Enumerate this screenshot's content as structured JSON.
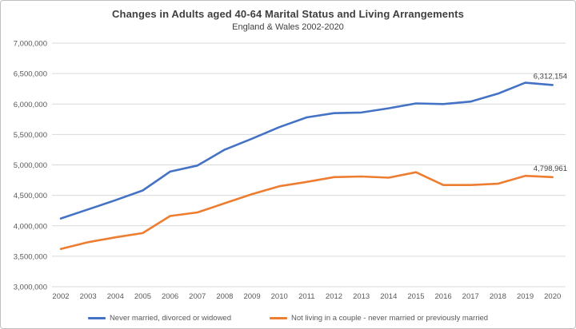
{
  "chart_data": {
    "type": "line",
    "title": "Changes in Adults aged 40-64 Marital Status and Living Arrangements",
    "subtitle": "England & Wales 2002-2020",
    "x": [
      2002,
      2003,
      2004,
      2005,
      2006,
      2007,
      2008,
      2009,
      2010,
      2011,
      2012,
      2013,
      2014,
      2015,
      2016,
      2017,
      2018,
      2019,
      2020
    ],
    "series": [
      {
        "name": "Never married, divorced or widowed",
        "color": "#4472C4",
        "values": [
          4120000,
          4270000,
          4420000,
          4580000,
          4890000,
          4990000,
          5250000,
          5430000,
          5620000,
          5780000,
          5850000,
          5860000,
          5930000,
          6010000,
          6000000,
          6040000,
          6170000,
          6350000,
          6312154
        ],
        "end_label": "6,312,154"
      },
      {
        "name": "Not living in a couple - never married or previously married",
        "color": "#ED7D31",
        "values": [
          3620000,
          3730000,
          3810000,
          3880000,
          4160000,
          4220000,
          4370000,
          4520000,
          4650000,
          4720000,
          4800000,
          4810000,
          4790000,
          4880000,
          4670000,
          4670000,
          4690000,
          4820000,
          4798961
        ],
        "end_label": "4,798,961"
      }
    ],
    "ylim": [
      3000000,
      7000000
    ],
    "ytick_step": 500000,
    "ytick_labels": [
      "3,000,000",
      "3,500,000",
      "4,000,000",
      "4,500,000",
      "5,000,000",
      "5,500,000",
      "6,000,000",
      "6,500,000",
      "7,000,000"
    ],
    "grid": true,
    "legend_position": "bottom"
  },
  "colors": {
    "gridline": "#d9d9d9",
    "axis_text": "#595959",
    "title_text": "#3f3f3f",
    "end_label_text": "#404040",
    "series1": "#4472C4",
    "series2": "#ED7D31"
  }
}
